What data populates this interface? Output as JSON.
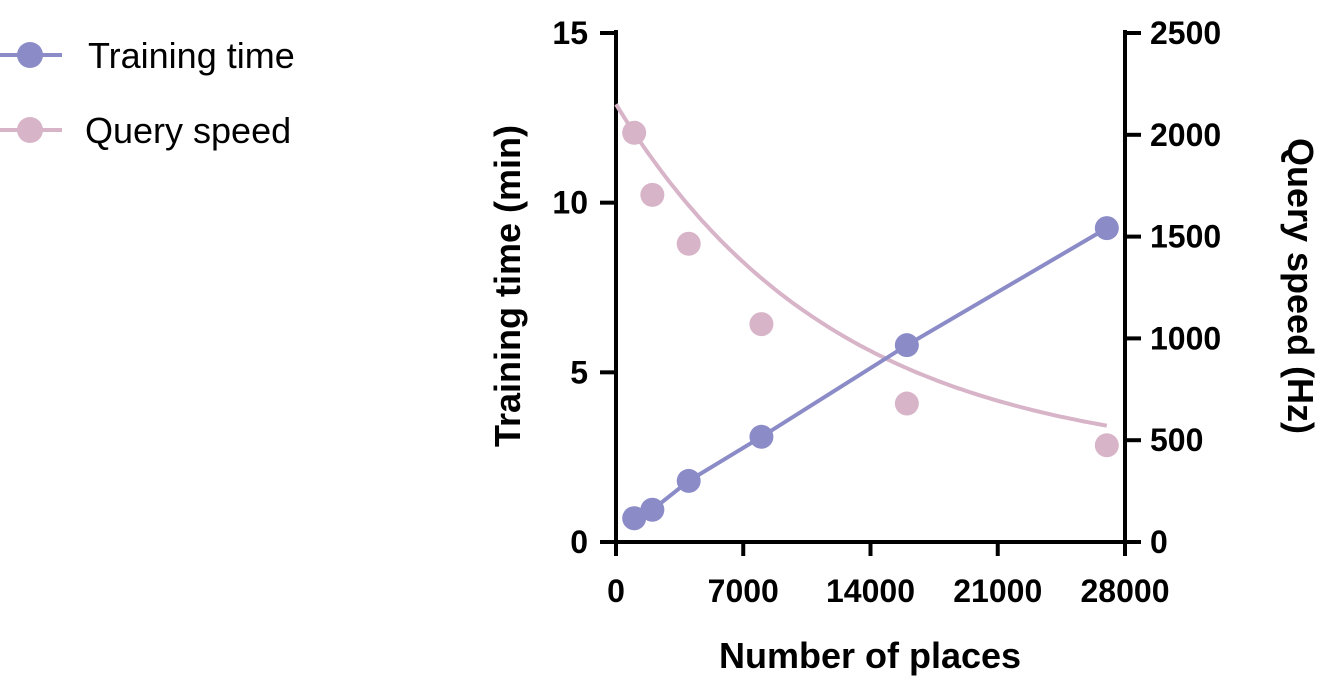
{
  "chart_data": {
    "type": "line",
    "xlabel": "Number of places",
    "ylabel_left": "Training time (min)",
    "ylabel_right": "Query speed (Hz)",
    "xlim": [
      0,
      28000
    ],
    "ylim_left": [
      0,
      15
    ],
    "ylim_right": [
      0,
      2500
    ],
    "x_ticks": [
      0,
      7000,
      14000,
      21000,
      28000
    ],
    "y_ticks_left": [
      0,
      5,
      10,
      15
    ],
    "y_ticks_right": [
      0,
      500,
      1000,
      1500,
      2000,
      2500
    ],
    "grid": false,
    "legend_placement": "top-left",
    "series": [
      {
        "name": "Training time",
        "axis": "left",
        "color": "#8b8bc8",
        "x": [
          1000,
          2000,
          4000,
          8000,
          16000,
          27000
        ],
        "values": [
          0.7,
          0.95,
          1.8,
          3.1,
          5.8,
          9.25
        ]
      },
      {
        "name": "Query speed",
        "axis": "right",
        "color": "#d8b4c8",
        "x": [
          1000,
          2000,
          4000,
          8000,
          16000,
          27000
        ],
        "values": [
          2010,
          1705,
          1465,
          1070,
          680,
          475
        ]
      }
    ]
  }
}
